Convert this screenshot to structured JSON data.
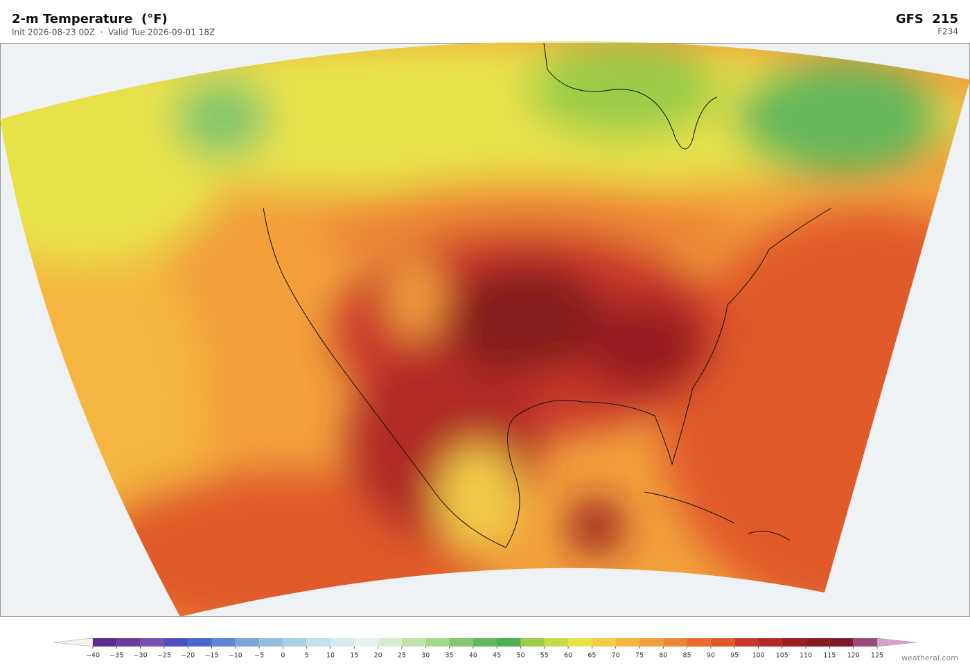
{
  "header": {
    "title": "2-m Temperature  (°F)",
    "subtitle": "Init 2026-08-23 00Z  ·  Valid Tue 2026-09-01 18Z",
    "model": "GFS  215",
    "forecast_hour": "F234"
  },
  "colorbar": {
    "ticks": [
      {
        "value": -40,
        "label": "−40"
      },
      {
        "value": -35,
        "label": "−35"
      },
      {
        "value": -30,
        "label": "−30"
      },
      {
        "value": -25,
        "label": "−25"
      },
      {
        "value": -20,
        "label": "−20"
      },
      {
        "value": -15,
        "label": "−15"
      },
      {
        "value": -10,
        "label": "−10"
      },
      {
        "value": -5,
        "label": "−5"
      },
      0,
      5,
      10,
      15,
      20,
      25,
      30,
      35,
      40,
      45,
      50,
      55,
      60,
      65,
      70,
      75,
      80,
      85,
      90,
      95,
      100,
      105,
      110,
      115,
      120,
      125
    ],
    "colors": [
      "#5b2d8e",
      "#6a3d9a",
      "#7452b0",
      "#4b4fc0",
      "#4a66cc",
      "#5a86d6",
      "#7ba3da",
      "#93bde0",
      "#a8cfe6",
      "#bfe0ec",
      "#d3ebef",
      "#e3f3ec",
      "#d6eccc",
      "#bfe3a8",
      "#a4d888",
      "#84c76c",
      "#63b85a",
      "#4caf50",
      "#9ccc4a",
      "#c5d94a",
      "#e8e24a",
      "#f2cc48",
      "#f4b63f",
      "#f2a03c",
      "#ee8635",
      "#e86a2f",
      "#e05a2a",
      "#c8392a",
      "#b02a26",
      "#981e22",
      "#861a1e",
      "#7a1a2a",
      "#9b4a7e",
      "#c278b2",
      "#d69cc8"
    ],
    "under_color": "#f4f4f4",
    "over_color": "#d8a0d0"
  },
  "footer": {
    "credit": "weatherai.com"
  }
}
